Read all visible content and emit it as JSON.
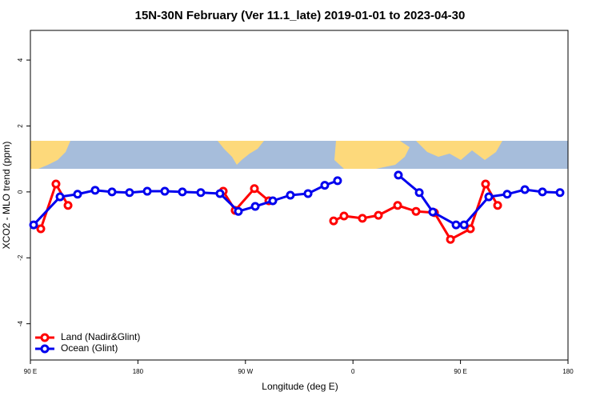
{
  "chart_data": {
    "type": "line",
    "title": "15N-30N February (Ver 11.1_late)   2019-01-01 to 2023-04-30",
    "x_label": "Longitude (deg E)",
    "y_label": "XCO2 - MLO trend (ppm)",
    "xlim": [
      90,
      540
    ],
    "xticks": [
      {
        "value": 90,
        "label": "90 E"
      },
      180,
      {
        "value": 270,
        "label": "90 W"
      },
      {
        "value": 360,
        "label": "0"
      },
      {
        "value": 450,
        "label": "90 E"
      },
      {
        "value": 540,
        "label": "180"
      }
    ],
    "ylim": [
      -5.1,
      4.9
    ],
    "yticks": [
      -4,
      -2,
      0,
      2,
      4
    ],
    "legend": "bottom-left",
    "series": [
      {
        "name": "Land (Nadir&Glint)",
        "color": "#ff0000",
        "x": [
          98.7,
          111.4,
          121.5,
          null,
          251.4,
          261.4,
          277.5,
          289.6,
          null,
          343.8,
          352.5,
          367.9,
          381.3,
          397.4,
          412.8,
          428.2,
          441.6,
          458.3,
          471.0,
          481.1
        ],
        "values": [
          -1.12,
          0.24,
          -0.41,
          null,
          0.02,
          -0.56,
          0.1,
          -0.27,
          null,
          -0.88,
          -0.73,
          -0.8,
          -0.71,
          -0.41,
          -0.59,
          -0.63,
          -1.44,
          -1.12,
          0.24,
          -0.41
        ]
      },
      {
        "name": "Ocean (Glint)",
        "color": "#0000ee",
        "x": [
          92.7,
          114.8,
          129.5,
          144.2,
          158.3,
          173.0,
          187.8,
          202.5,
          217.2,
          232.6,
          248.7,
          264.1,
          278.2,
          292.9,
          307.6,
          322.4,
          336.4,
          347.1,
          null,
          398.0,
          415.5,
          426.8,
          446.3,
          453.0,
          473.7,
          489.1,
          503.9,
          518.6,
          533.3
        ],
        "values": [
          -1.0,
          -0.15,
          -0.07,
          0.05,
          0.0,
          -0.02,
          0.02,
          0.02,
          0.0,
          -0.02,
          -0.05,
          -0.59,
          -0.44,
          -0.27,
          -0.1,
          -0.05,
          0.2,
          0.34,
          null,
          0.51,
          -0.02,
          -0.61,
          -1.0,
          -1.0,
          -0.15,
          -0.07,
          0.07,
          0.0,
          -0.02
        ]
      }
    ]
  }
}
